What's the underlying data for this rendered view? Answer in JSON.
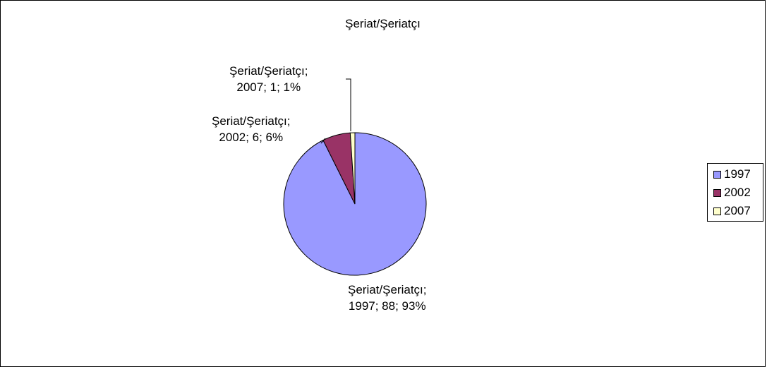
{
  "chart_data": {
    "type": "pie",
    "title": "Şeriat/Şeriatçı",
    "categories": [
      "1997",
      "2002",
      "2007"
    ],
    "values": [
      88,
      6,
      1
    ],
    "percentages": [
      "93%",
      "6%",
      "1%"
    ],
    "colors": [
      "#9999ff",
      "#993366",
      "#ffffcc"
    ],
    "series_name": "Şeriat/Şeriatçı",
    "labels": [
      {
        "line1": "Şeriat/Şeriatçı;",
        "line2": "1997; 88; 93%"
      },
      {
        "line1": "Şeriat/Şeriatçı;",
        "line2": "2002; 6; 6%"
      },
      {
        "line1": "Şeriat/Şeriatçı;",
        "line2": "2007; 1; 1%"
      }
    ],
    "legend": {
      "position": "right",
      "items": [
        "1997",
        "2002",
        "2007"
      ]
    }
  }
}
